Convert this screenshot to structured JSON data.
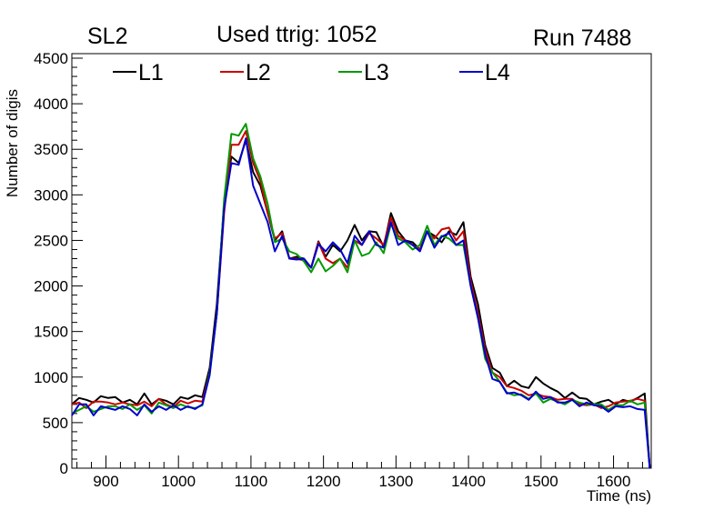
{
  "header": {
    "left_label": "SL2",
    "title": "Used ttrig: 1052",
    "right_label": "Run 7488"
  },
  "chart_data": {
    "type": "line",
    "title": "Used ttrig: 1052",
    "xlabel": "Time (ns)",
    "ylabel": "Number of digis",
    "xlim": [
      853,
      1652
    ],
    "ylim": [
      0,
      4550
    ],
    "xticks": [
      900,
      1000,
      1100,
      1200,
      1300,
      1400,
      1500,
      1600
    ],
    "yticks": [
      0,
      500,
      1000,
      1500,
      2000,
      2500,
      3000,
      3500,
      4000,
      4500
    ],
    "grid": false,
    "legend_position": "top",
    "x": [
      853,
      863,
      873,
      883,
      893,
      903,
      913,
      923,
      933,
      943,
      953,
      963,
      973,
      983,
      993,
      1003,
      1013,
      1023,
      1033,
      1043,
      1053,
      1063,
      1073,
      1083,
      1093,
      1103,
      1113,
      1123,
      1133,
      1143,
      1153,
      1163,
      1173,
      1183,
      1193,
      1203,
      1213,
      1223,
      1233,
      1243,
      1253,
      1263,
      1273,
      1283,
      1293,
      1303,
      1313,
      1323,
      1333,
      1343,
      1353,
      1363,
      1373,
      1383,
      1393,
      1403,
      1413,
      1423,
      1433,
      1443,
      1453,
      1463,
      1473,
      1483,
      1493,
      1503,
      1513,
      1523,
      1533,
      1543,
      1553,
      1563,
      1573,
      1583,
      1593,
      1603,
      1613,
      1623,
      1633,
      1643,
      1650
    ],
    "series": [
      {
        "name": "L1",
        "color": "#000000",
        "values": [
          700,
          770,
          750,
          720,
          790,
          770,
          780,
          720,
          750,
          700,
          820,
          700,
          760,
          740,
          700,
          780,
          760,
          800,
          780,
          1100,
          1800,
          2900,
          3420,
          3350,
          3600,
          3250,
          3100,
          2800,
          2500,
          2600,
          2300,
          2320,
          2300,
          2200,
          2490,
          2320,
          2450,
          2380,
          2500,
          2670,
          2500,
          2600,
          2590,
          2430,
          2800,
          2600,
          2500,
          2480,
          2400,
          2600,
          2550,
          2480,
          2600,
          2560,
          2700,
          2100,
          1800,
          1350,
          1100,
          1050,
          900,
          960,
          900,
          880,
          1000,
          930,
          880,
          840,
          770,
          830,
          770,
          760,
          700,
          730,
          750,
          700,
          750,
          730,
          770,
          820,
          0
        ]
      },
      {
        "name": "L2",
        "color": "#cc0000",
        "values": [
          700,
          720,
          660,
          730,
          730,
          720,
          700,
          720,
          700,
          690,
          730,
          680,
          760,
          700,
          670,
          740,
          710,
          740,
          730,
          1050,
          1700,
          2800,
          3550,
          3550,
          3700,
          3350,
          3150,
          2800,
          2520,
          2580,
          2300,
          2300,
          2280,
          2200,
          2480,
          2300,
          2250,
          2300,
          2200,
          2500,
          2450,
          2580,
          2520,
          2450,
          2750,
          2550,
          2500,
          2450,
          2400,
          2600,
          2520,
          2620,
          2640,
          2500,
          2600,
          2050,
          1700,
          1300,
          1050,
          1000,
          900,
          880,
          850,
          800,
          820,
          790,
          780,
          750,
          760,
          760,
          700,
          690,
          700,
          660,
          680,
          720,
          730,
          740,
          760,
          740,
          0
        ]
      },
      {
        "name": "L3",
        "color": "#009900",
        "values": [
          600,
          640,
          680,
          620,
          650,
          680,
          680,
          650,
          700,
          640,
          690,
          600,
          720,
          690,
          660,
          700,
          670,
          660,
          690,
          1050,
          1700,
          2950,
          3670,
          3650,
          3780,
          3400,
          3200,
          2900,
          2480,
          2520,
          2380,
          2350,
          2270,
          2150,
          2300,
          2160,
          2220,
          2300,
          2150,
          2500,
          2330,
          2360,
          2480,
          2360,
          2680,
          2520,
          2480,
          2400,
          2450,
          2660,
          2450,
          2550,
          2520,
          2450,
          2450,
          2000,
          1650,
          1200,
          1050,
          950,
          830,
          800,
          810,
          760,
          820,
          720,
          760,
          730,
          700,
          750,
          720,
          700,
          700,
          700,
          640,
          690,
          690,
          740,
          700,
          720,
          0
        ]
      },
      {
        "name": "L4",
        "color": "#0000cc",
        "values": [
          580,
          700,
          700,
          580,
          680,
          660,
          640,
          680,
          650,
          580,
          700,
          620,
          680,
          640,
          690,
          640,
          680,
          650,
          700,
          1020,
          1700,
          2850,
          3350,
          3330,
          3620,
          3100,
          2900,
          2700,
          2380,
          2550,
          2300,
          2290,
          2300,
          2200,
          2460,
          2380,
          2480,
          2400,
          2250,
          2550,
          2450,
          2600,
          2450,
          2420,
          2700,
          2450,
          2500,
          2450,
          2380,
          2600,
          2420,
          2540,
          2580,
          2450,
          2500,
          2000,
          1650,
          1250,
          980,
          950,
          820,
          830,
          800,
          750,
          840,
          760,
          780,
          720,
          720,
          750,
          680,
          720,
          690,
          680,
          620,
          680,
          670,
          680,
          650,
          640,
          0
        ]
      }
    ]
  }
}
